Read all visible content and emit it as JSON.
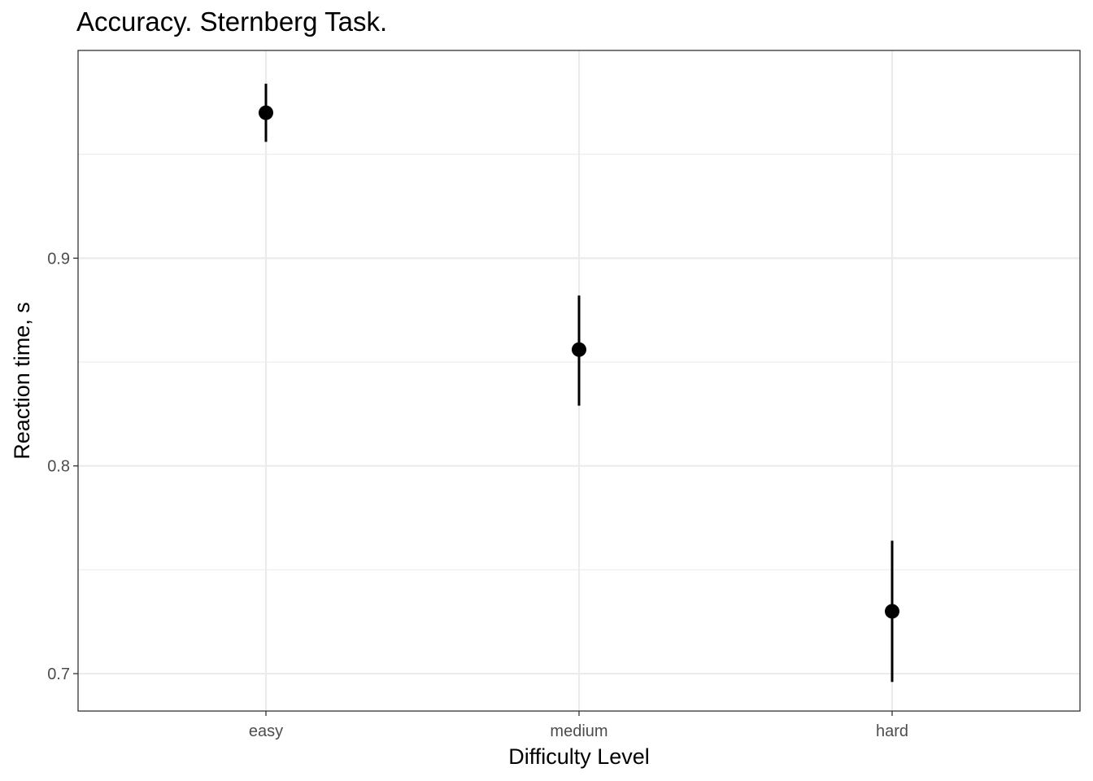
{
  "chart_data": {
    "type": "pointrange",
    "title": "Accuracy. Sternberg Task.",
    "xlabel": "Difficulty Level",
    "ylabel": "Reaction time, s",
    "categories": [
      "easy",
      "medium",
      "hard"
    ],
    "values": [
      0.97,
      0.856,
      0.73
    ],
    "lower": [
      0.956,
      0.829,
      0.696
    ],
    "upper": [
      0.984,
      0.882,
      0.764
    ],
    "ylim": [
      0.682,
      1.0
    ],
    "y_ticks": [
      0.7,
      0.8,
      0.9
    ],
    "y_tick_labels": [
      "0.7",
      "0.8",
      "0.9"
    ],
    "grid": true,
    "colors": {
      "point": "#000000",
      "grid": "#ebebeb",
      "panel_border": "#333333"
    }
  }
}
